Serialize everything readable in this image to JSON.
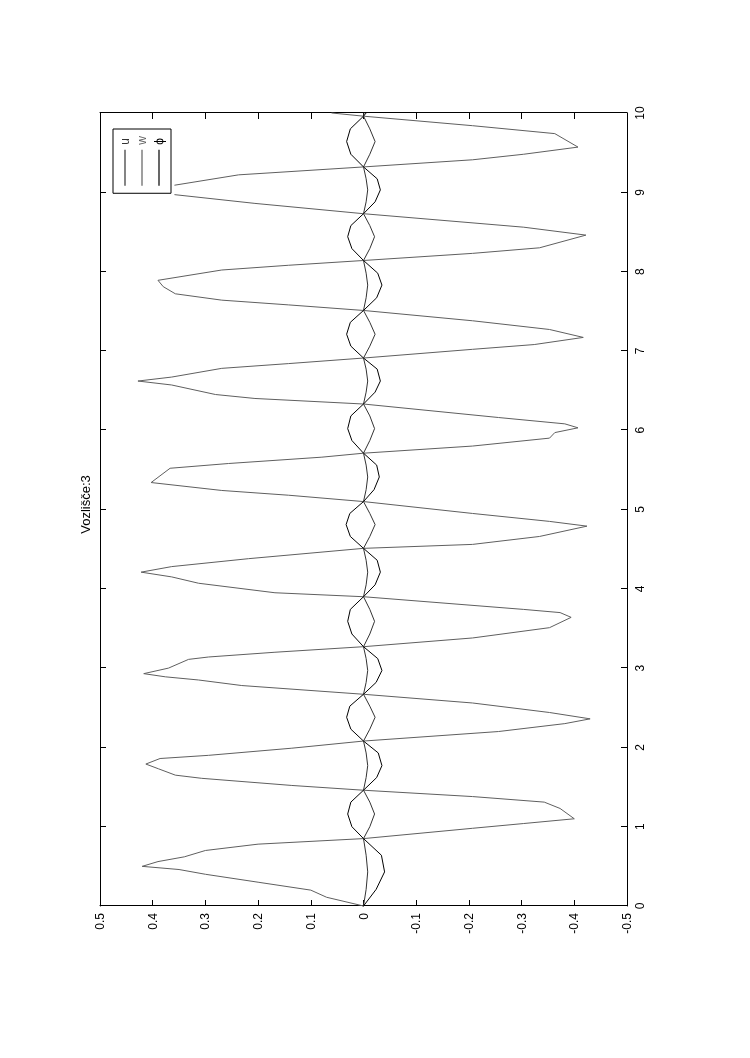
{
  "chart_data": {
    "type": "line",
    "title": "Vozlišče:3",
    "xlim": [
      0.5,
      -0.5
    ],
    "xticks": [
      0.5,
      0.4,
      0.3,
      0.2,
      0.1,
      0,
      -0.1,
      -0.2,
      -0.3,
      -0.4,
      -0.5
    ],
    "ylim": [
      0,
      10
    ],
    "yticks": [
      0,
      1,
      2,
      3,
      4,
      5,
      6,
      7,
      8,
      9,
      10
    ],
    "legend": "top left",
    "series": [
      {
        "name": "u",
        "color": "#333333",
        "x": [
          0,
          -0.005,
          -0.008,
          -0.005,
          0,
          -0.012,
          -0.021,
          -0.012,
          0,
          -0.005,
          -0.008,
          -0.005,
          0,
          -0.012,
          -0.022,
          -0.012,
          0,
          -0.005,
          -0.008,
          -0.005,
          0,
          -0.012,
          -0.021,
          -0.012,
          0,
          -0.005,
          -0.008,
          -0.005,
          0,
          -0.012,
          -0.022,
          -0.012,
          0,
          -0.005,
          -0.008,
          -0.005,
          0,
          -0.012,
          -0.021,
          -0.012,
          0,
          -0.005,
          -0.008,
          -0.005,
          0,
          -0.012,
          -0.022,
          -0.012,
          0,
          -0.005,
          -0.008,
          -0.005,
          0,
          -0.012,
          -0.021,
          -0.012,
          0,
          -0.005,
          -0.008,
          -0.005,
          0,
          -0.012,
          -0.022,
          -0.012,
          0,
          -0.001
        ],
        "values": [
          0,
          0.21,
          0.43,
          0.64,
          0.85,
          1.0,
          1.16,
          1.31,
          1.46,
          1.62,
          1.77,
          1.93,
          2.08,
          2.23,
          2.38,
          2.52,
          2.67,
          2.82,
          2.97,
          3.12,
          3.27,
          3.43,
          3.59,
          3.74,
          3.9,
          4.05,
          4.21,
          4.36,
          4.51,
          4.66,
          4.81,
          4.95,
          5.1,
          5.25,
          5.41,
          5.56,
          5.71,
          5.87,
          6.02,
          6.18,
          6.33,
          6.48,
          6.62,
          6.77,
          6.91,
          7.06,
          7.21,
          7.36,
          7.51,
          7.67,
          7.83,
          7.98,
          8.14,
          8.29,
          8.44,
          8.58,
          8.73,
          8.88,
          9.03,
          9.17,
          9.32,
          9.48,
          9.64,
          9.8,
          9.96,
          10
        ]
      },
      {
        "name": "w",
        "color": "#5f5f5f",
        "x": [
          0,
          0.07,
          0.1,
          0.2,
          0.3,
          0.35,
          0.42,
          0.39,
          0.34,
          0.3,
          0.2,
          0,
          -0.207,
          -0.304,
          -0.4,
          -0.373,
          -0.343,
          -0.207,
          0,
          0.136,
          0.307,
          0.357,
          0.389,
          0.413,
          0.386,
          0.294,
          0.136,
          0,
          -0.256,
          -0.382,
          -0.43,
          -0.353,
          -0.207,
          0,
          0.231,
          0.313,
          0.376,
          0.417,
          0.37,
          0.332,
          0.294,
          0.168,
          0,
          -0.207,
          -0.353,
          -0.394,
          -0.373,
          -0.304,
          0,
          0.168,
          0.313,
          0.364,
          0.422,
          0.364,
          0.218,
          0,
          -0.207,
          -0.334,
          -0.424,
          -0.353,
          -0.207,
          0,
          0.142,
          0.269,
          0.403,
          0.367,
          0.256,
          0.079,
          0,
          -0.207,
          -0.353,
          -0.363,
          -0.407,
          -0.382,
          -0.256,
          0,
          0.206,
          0.281,
          0.364,
          0.428,
          0.364,
          0.269,
          0.142,
          0,
          -0.207,
          -0.324,
          -0.417,
          -0.353,
          -0.207,
          0,
          0.142,
          0.269,
          0.357,
          0.38,
          0.39,
          0.269,
          0.142,
          0,
          -0.207,
          -0.334,
          -0.422,
          -0.304,
          0,
          0.206,
          0.358,
          null,
          0.358,
          0.237,
          0,
          -0.207,
          -0.304,
          -0.407,
          -0.363,
          -0.207,
          0,
          0.06
        ],
        "values": [
          0,
          0.11,
          0.2,
          0.3,
          0.4,
          0.46,
          0.5,
          0.56,
          0.62,
          0.7,
          0.78,
          0.85,
          0.98,
          1.04,
          1.1,
          1.23,
          1.31,
          1.38,
          1.46,
          1.52,
          1.61,
          1.65,
          1.73,
          1.79,
          1.86,
          1.9,
          1.99,
          2.08,
          2.2,
          2.3,
          2.36,
          2.44,
          2.56,
          2.67,
          2.78,
          2.85,
          2.89,
          2.93,
          3.0,
          3.11,
          3.14,
          3.2,
          3.27,
          3.38,
          3.51,
          3.64,
          3.7,
          3.74,
          3.9,
          3.95,
          4.07,
          4.15,
          4.21,
          4.28,
          4.38,
          4.51,
          4.56,
          4.66,
          4.79,
          4.85,
          4.95,
          5.1,
          5.18,
          5.24,
          5.34,
          5.52,
          5.58,
          5.66,
          5.71,
          5.8,
          5.9,
          5.97,
          6.03,
          6.08,
          6.16,
          6.33,
          6.4,
          6.45,
          6.57,
          6.62,
          6.67,
          6.78,
          6.84,
          6.91,
          7.02,
          7.08,
          7.17,
          7.27,
          7.38,
          7.51,
          7.58,
          7.64,
          7.72,
          7.81,
          7.89,
          8.02,
          8.08,
          8.14,
          8.23,
          8.3,
          8.46,
          8.56,
          8.73,
          8.86,
          8.97,
          null,
          9.09,
          9.22,
          9.32,
          9.41,
          9.48,
          9.57,
          9.74,
          9.84,
          9.96,
          10
        ]
      },
      {
        "name": "ϕ",
        "color": "#000000",
        "x": [
          0,
          -0.024,
          -0.04,
          -0.034,
          0,
          0.022,
          0.03,
          0.024,
          0,
          -0.025,
          -0.035,
          -0.028,
          0,
          0.024,
          0.032,
          0.026,
          0,
          -0.024,
          -0.035,
          -0.027,
          0,
          0.022,
          0.03,
          0.025,
          0,
          -0.022,
          -0.032,
          -0.026,
          0,
          0.025,
          0.033,
          0.026,
          0,
          -0.02,
          -0.03,
          -0.025,
          0,
          0.022,
          0.03,
          0.024,
          0,
          -0.022,
          -0.032,
          -0.026,
          0,
          0.024,
          0.032,
          0.025,
          0,
          -0.025,
          -0.035,
          -0.027,
          0,
          0.022,
          0.03,
          0.024,
          0,
          -0.022,
          -0.032,
          -0.026,
          0,
          0.024,
          0.032,
          0.025,
          0,
          -0.005
        ],
        "values": [
          0,
          0.21,
          0.43,
          0.64,
          0.85,
          1.0,
          1.16,
          1.31,
          1.46,
          1.62,
          1.77,
          1.93,
          2.08,
          2.23,
          2.38,
          2.52,
          2.67,
          2.82,
          2.97,
          3.12,
          3.27,
          3.43,
          3.59,
          3.74,
          3.9,
          4.05,
          4.21,
          4.36,
          4.51,
          4.66,
          4.81,
          4.95,
          5.1,
          5.25,
          5.41,
          5.56,
          5.71,
          5.87,
          6.02,
          6.18,
          6.33,
          6.48,
          6.62,
          6.77,
          6.91,
          7.06,
          7.21,
          7.36,
          7.51,
          7.67,
          7.83,
          7.98,
          8.14,
          8.29,
          8.44,
          8.58,
          8.73,
          8.88,
          9.03,
          9.17,
          9.32,
          9.48,
          9.64,
          9.8,
          9.96,
          10
        ]
      }
    ]
  }
}
